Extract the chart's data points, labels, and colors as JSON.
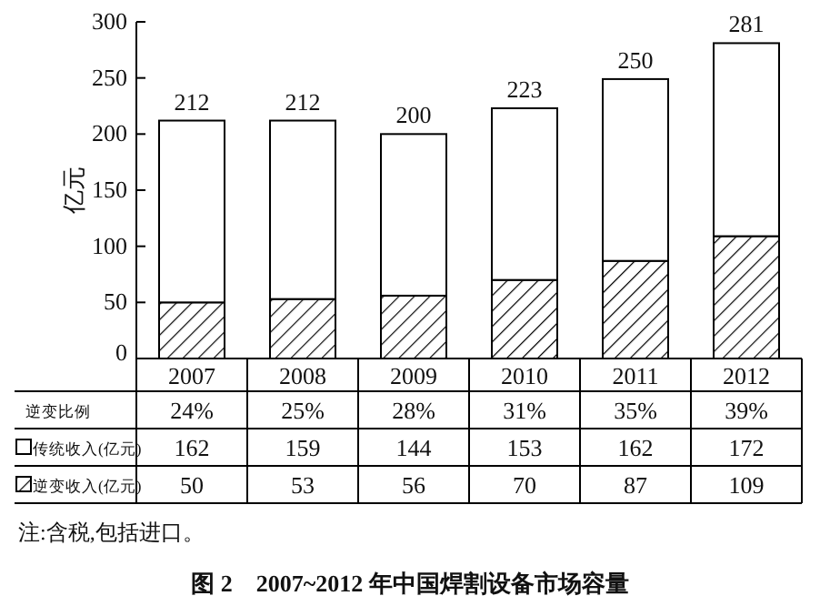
{
  "chart_data": {
    "type": "bar",
    "stacked": true,
    "title": "图 2　2007~2012 年中国焊割设备市场容量",
    "ylabel": "亿元",
    "categories": [
      "2007",
      "2008",
      "2009",
      "2010",
      "2011",
      "2012"
    ],
    "series": [
      {
        "name": "逆变收入(亿元)",
        "color": "#000000",
        "values": [
          50,
          53,
          56,
          70,
          87,
          109
        ]
      },
      {
        "name": "传统收入(亿元)",
        "color": "#ffffff",
        "values": [
          162,
          159,
          144,
          153,
          162,
          172
        ]
      }
    ],
    "totals": [
      "212",
      "212",
      "200",
      "223",
      "250",
      "281"
    ],
    "ylim": [
      0,
      300
    ],
    "yticks": [
      0,
      50,
      100,
      150,
      200,
      250,
      300
    ],
    "data_labels": true,
    "legend": "bottom",
    "annotations": [
      "逆变比例",
      "24%",
      "25%",
      "28%",
      "31%",
      "35%",
      "39%",
      "注:含税,包括进口。"
    ]
  }
}
